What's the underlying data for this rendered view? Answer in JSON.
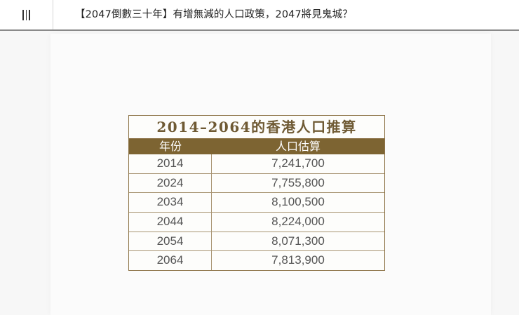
{
  "header": {
    "menu_icon": "hamburger-vertical-icon",
    "title": "【2047倒數三十年】有增無減的人口政策，2047將見鬼城？"
  },
  "figure": {
    "table_title": "2014–2064的香港人口推算",
    "columns": [
      "年份",
      "人口估算"
    ],
    "rows": [
      {
        "year": "2014",
        "population": "7,241,700"
      },
      {
        "year": "2024",
        "population": "7,755,800"
      },
      {
        "year": "2034",
        "population": "8,100,500"
      },
      {
        "year": "2044",
        "population": "8,224,000"
      },
      {
        "year": "2054",
        "population": "8,071,300"
      },
      {
        "year": "2064",
        "population": "7,813,900"
      }
    ]
  },
  "colors": {
    "header_fill": "#7d6432",
    "title_text": "#6f5a34",
    "border": "#8c7246"
  }
}
